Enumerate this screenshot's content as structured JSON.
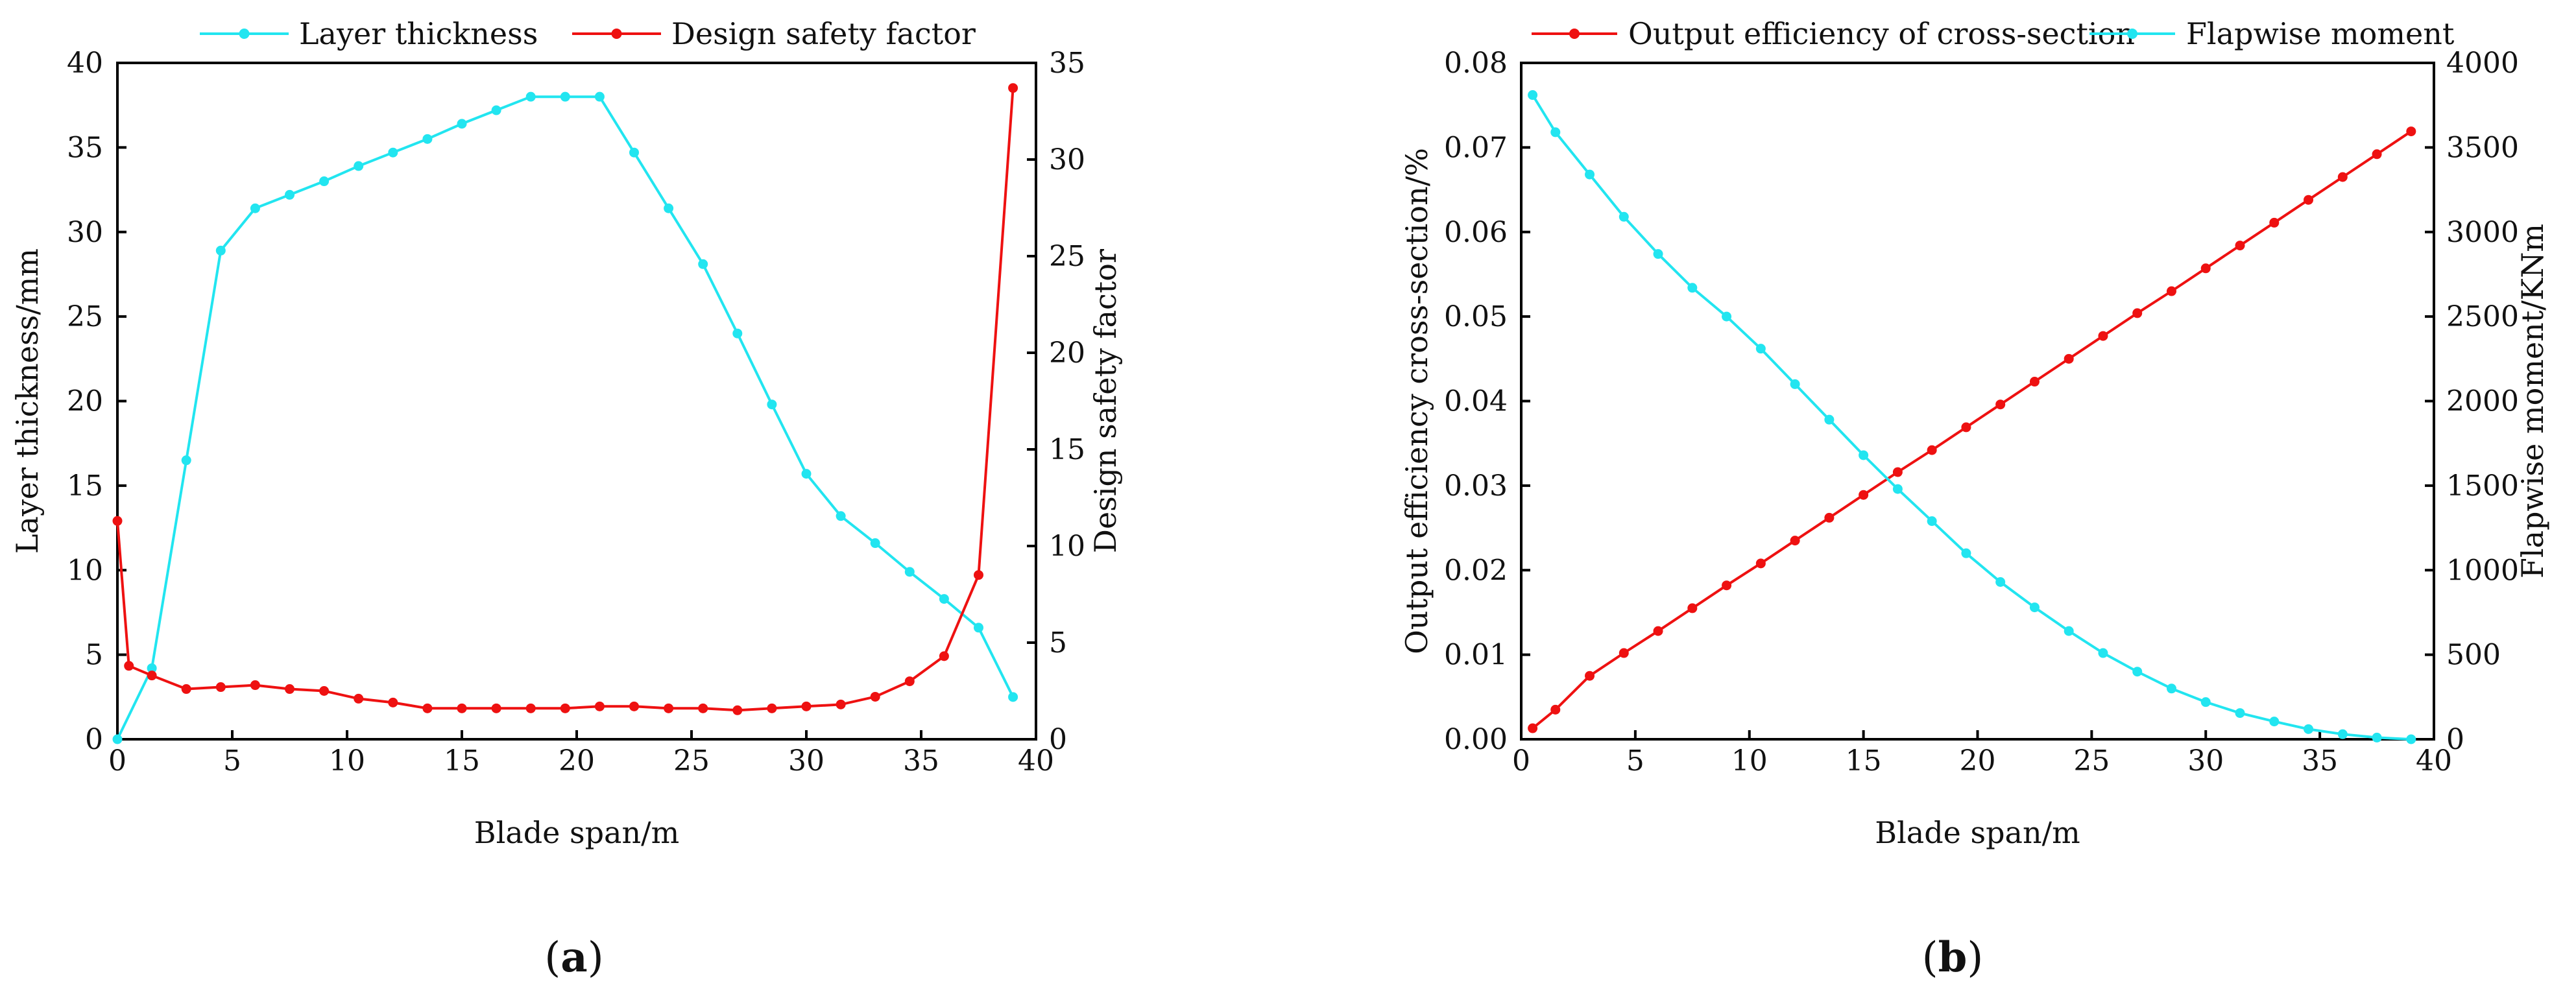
{
  "colors": {
    "cyan": "#22e5f0",
    "red": "#ee1111",
    "axis": "#000000"
  },
  "panels": [
    {
      "id": "a",
      "label_open": "(",
      "label_letter": "a",
      "label_close": ")"
    },
    {
      "id": "b",
      "label_open": "(",
      "label_letter": "b",
      "label_close": ")"
    }
  ],
  "chart_data": [
    {
      "type": "line",
      "panel": "a",
      "xlabel": "Blade span/m",
      "ylabel_left": "Layer thickness/mm",
      "ylabel_right": "Design safety factor",
      "xlim": [
        0,
        40
      ],
      "ylim_left": [
        0,
        40
      ],
      "ylim_right": [
        0,
        35
      ],
      "x_ticks": [
        0,
        5,
        10,
        15,
        20,
        25,
        30,
        35,
        40
      ],
      "y_ticks_left": [
        0,
        5,
        10,
        15,
        20,
        25,
        30,
        35,
        40
      ],
      "y_ticks_right": [
        0,
        5,
        10,
        15,
        20,
        25,
        30,
        35
      ],
      "legend_position": "top",
      "series": [
        {
          "name": "Layer thickness",
          "axis": "left",
          "color": "#22e5f0",
          "x": [
            0,
            1.5,
            3,
            4.5,
            6,
            7.5,
            9,
            10.5,
            12,
            13.5,
            15,
            16.5,
            18,
            19.5,
            21,
            22.5,
            24,
            25.5,
            27,
            28.5,
            30,
            31.5,
            33,
            34.5,
            36,
            37.5,
            39
          ],
          "values": [
            0,
            4.2,
            16.5,
            28.9,
            31.4,
            32.2,
            33.0,
            33.9,
            34.7,
            35.5,
            36.4,
            37.2,
            38.0,
            38.0,
            38.0,
            34.7,
            31.4,
            28.1,
            24.0,
            19.8,
            15.7,
            13.2,
            11.6,
            9.9,
            8.3,
            6.6,
            2.5
          ]
        },
        {
          "name": "Design safety factor",
          "axis": "right",
          "color": "#ee1111",
          "x": [
            0,
            0.5,
            1.5,
            3,
            4.5,
            6,
            7.5,
            9,
            10.5,
            12,
            13.5,
            15,
            16.5,
            18,
            19.5,
            21,
            22.5,
            24,
            25.5,
            27,
            28.5,
            30,
            31.5,
            33,
            34.5,
            36,
            37.5,
            39
          ],
          "values": [
            11.3,
            3.8,
            3.3,
            2.6,
            2.7,
            2.8,
            2.6,
            2.5,
            2.1,
            1.9,
            1.6,
            1.6,
            1.6,
            1.6,
            1.6,
            1.7,
            1.7,
            1.6,
            1.6,
            1.5,
            1.6,
            1.7,
            1.8,
            2.2,
            3.0,
            4.3,
            8.5,
            33.7
          ]
        }
      ]
    },
    {
      "type": "line",
      "panel": "b",
      "xlabel": "Blade span/m",
      "ylabel_left": "Output efficiency cross-section/%",
      "ylabel_right": "Flapwise moment/KNm",
      "xlim": [
        0,
        40
      ],
      "ylim_left": [
        0,
        0.08
      ],
      "ylim_right": [
        0,
        4000
      ],
      "x_ticks": [
        0,
        5,
        10,
        15,
        20,
        25,
        30,
        35,
        40
      ],
      "x_tick_labels": [
        "0",
        "5",
        "10",
        "15",
        "20",
        "25",
        "30",
        "35",
        "40"
      ],
      "y_ticks_left": [
        0,
        0.01,
        0.02,
        0.03,
        0.04,
        0.05,
        0.06,
        0.07,
        0.08
      ],
      "y_tick_labels_left": [
        "0.00",
        "0.01",
        "0.02",
        "0.03",
        "0.04",
        "0.05",
        "0.06",
        "0.07",
        "0.08"
      ],
      "y_ticks_right": [
        0,
        500,
        1000,
        1500,
        2000,
        2500,
        3000,
        3500,
        4000
      ],
      "legend_position": "top",
      "series": [
        {
          "name": "Output efficiency of cross-section",
          "axis": "left",
          "color": "#ee1111",
          "x": [
            0.5,
            1.5,
            3,
            4.5,
            6,
            7.5,
            9,
            10.5,
            12,
            13.5,
            15,
            16.5,
            18,
            19.5,
            21,
            22.5,
            24,
            25.5,
            27,
            28.5,
            30,
            31.5,
            33,
            34.5,
            36,
            37.5,
            39
          ],
          "values": [
            0.0013,
            0.0035,
            0.0075,
            0.0102,
            0.0128,
            0.0155,
            0.0182,
            0.0208,
            0.0235,
            0.0262,
            0.0289,
            0.0316,
            0.0342,
            0.0369,
            0.0396,
            0.0423,
            0.045,
            0.0477,
            0.0504,
            0.053,
            0.0557,
            0.0584,
            0.0611,
            0.0638,
            0.0665,
            0.0692,
            0.0719
          ]
        },
        {
          "name": "Flapwise moment",
          "axis": "right",
          "color": "#22e5f0",
          "x": [
            0.5,
            1.5,
            3,
            4.5,
            6,
            7.5,
            9,
            10.5,
            12,
            13.5,
            15,
            16.5,
            18,
            19.5,
            21,
            22.5,
            24,
            25.5,
            27,
            28.5,
            30,
            31.5,
            33,
            34.5,
            36,
            37.5,
            39
          ],
          "values": [
            3810,
            3590,
            3340,
            3090,
            2870,
            2670,
            2500,
            2310,
            2100,
            1890,
            1680,
            1480,
            1290,
            1100,
            930,
            780,
            640,
            510,
            400,
            300,
            220,
            155,
            105,
            60,
            30,
            10,
            0
          ]
        }
      ]
    }
  ]
}
